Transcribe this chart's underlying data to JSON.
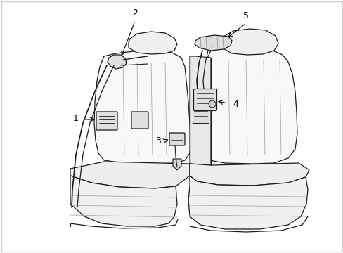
{
  "background_color": "#ffffff",
  "line_color": "#1a1a1a",
  "label_color": "#000000",
  "fig_width": 4.89,
  "fig_height": 3.6,
  "dpi": 100,
  "label_fontsize": 9,
  "border_color": "#cccccc"
}
